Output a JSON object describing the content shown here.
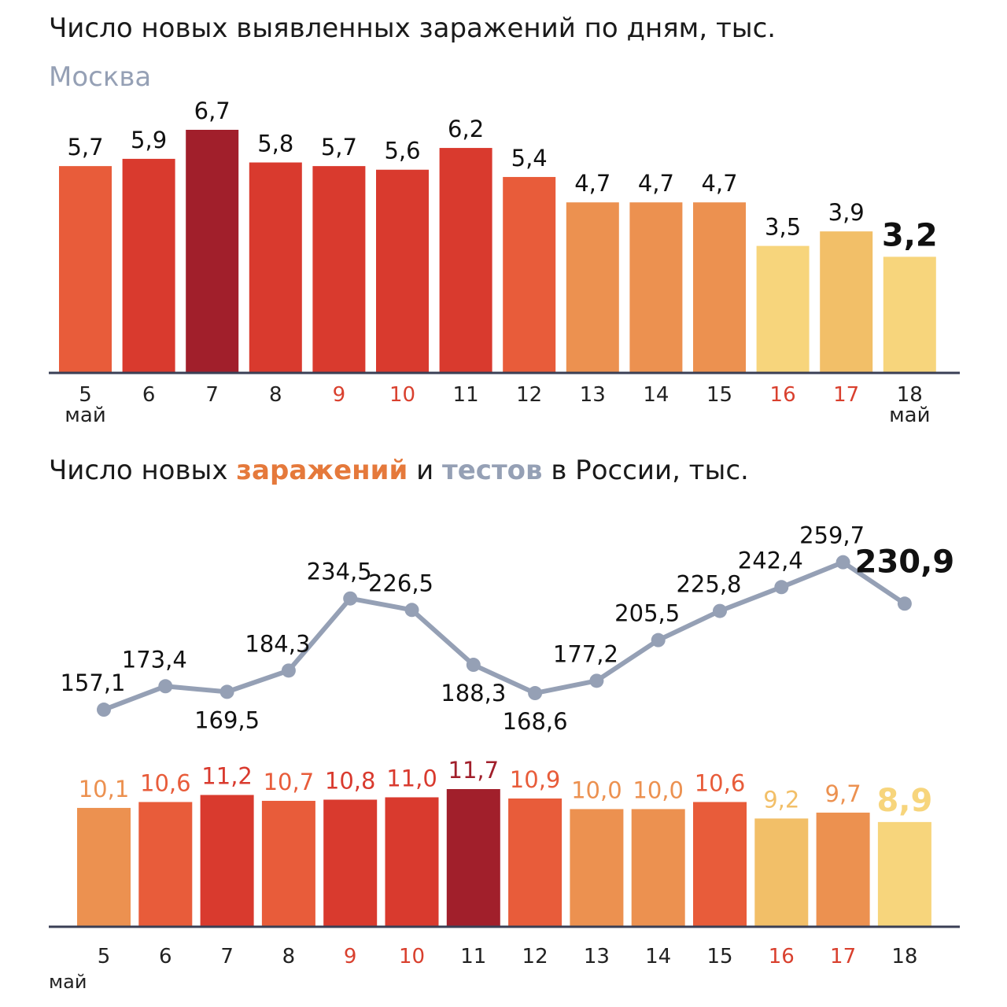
{
  "title_moscow": "Число новых выявленных заражений по дням, тыс.",
  "subtitle_moscow": "Москва",
  "title_russia": {
    "part1": "Число новых ",
    "infections": "заражений",
    "part2": " и ",
    "tests": "тестов",
    "part3": " в России, тыс."
  },
  "colors": {
    "level1": "#f7d57c",
    "level2": "#f2bf68",
    "level3": "#ec9150",
    "level4": "#e85c3a",
    "level5": "#d93a2e",
    "level6": "#a11f2b",
    "weekend_label": "#d9402e",
    "axis": "#3a3f55",
    "line": "#95a0b5"
  },
  "chart_data": [
    {
      "type": "bar",
      "title": "Число новых выявленных заражений по дням, тыс.",
      "subtitle": "Москва",
      "categories": [
        "5",
        "6",
        "7",
        "8",
        "9",
        "10",
        "11",
        "12",
        "13",
        "14",
        "15",
        "16",
        "17",
        "18"
      ],
      "values": [
        5.7,
        5.9,
        6.7,
        5.8,
        5.7,
        5.6,
        6.2,
        5.4,
        4.7,
        4.7,
        4.7,
        3.5,
        3.9,
        3.2
      ],
      "value_labels": [
        "5,7",
        "5,9",
        "6,7",
        "5,8",
        "5,7",
        "5,6",
        "6,2",
        "5,4",
        "4,7",
        "4,7",
        "4,7",
        "3,5",
        "3,9",
        "3,2"
      ],
      "color_levels": [
        4,
        5,
        6,
        5,
        5,
        5,
        5,
        4,
        3,
        3,
        3,
        1,
        2,
        1
      ],
      "weekend": [
        false,
        false,
        false,
        false,
        true,
        true,
        false,
        false,
        false,
        false,
        false,
        true,
        true,
        false
      ],
      "month_labels": [
        {
          "index": 0,
          "text": "май"
        },
        {
          "index": 13,
          "text": "май"
        }
      ],
      "highlight_last": true,
      "ylim": [
        0,
        6.7
      ]
    },
    {
      "type": "line",
      "name": "тестов",
      "categories": [
        "5",
        "6",
        "7",
        "8",
        "9",
        "10",
        "11",
        "12",
        "13",
        "14",
        "15",
        "16",
        "17",
        "18"
      ],
      "values": [
        157.1,
        173.4,
        169.5,
        184.3,
        234.5,
        226.5,
        188.3,
        168.6,
        177.2,
        205.5,
        225.8,
        242.4,
        259.7,
        230.9
      ],
      "value_labels": [
        "157,1",
        "173,4",
        "169,5",
        "184,3",
        "234,5",
        "226,5",
        "188,3",
        "168,6",
        "177,2",
        "205,5",
        "225,8",
        "242,4",
        "259,7",
        "230,9"
      ],
      "label_below": [
        false,
        false,
        true,
        false,
        false,
        false,
        true,
        true,
        false,
        false,
        false,
        false,
        false,
        false
      ],
      "highlight_last": true
    },
    {
      "type": "bar",
      "name": "заражений",
      "categories": [
        "5",
        "6",
        "7",
        "8",
        "9",
        "10",
        "11",
        "12",
        "13",
        "14",
        "15",
        "16",
        "17",
        "18"
      ],
      "values": [
        10.1,
        10.6,
        11.2,
        10.7,
        10.8,
        11.0,
        11.7,
        10.9,
        10.0,
        10.0,
        10.6,
        9.2,
        9.7,
        8.9
      ],
      "value_labels": [
        "10,1",
        "10,6",
        "11,2",
        "10,7",
        "10,8",
        "11,0",
        "11,7",
        "10,9",
        "10,0",
        "10,0",
        "10,6",
        "9,2",
        "9,7",
        "8,9"
      ],
      "color_levels": [
        3,
        4,
        5,
        4,
        5,
        5,
        6,
        4,
        3,
        3,
        4,
        2,
        3,
        1
      ],
      "weekend": [
        false,
        false,
        false,
        false,
        true,
        true,
        false,
        false,
        false,
        false,
        false,
        true,
        true,
        false
      ],
      "month_labels": [
        {
          "index": 0,
          "text": "май"
        }
      ],
      "highlight_last": true,
      "ylim": [
        0,
        11.7
      ]
    }
  ]
}
